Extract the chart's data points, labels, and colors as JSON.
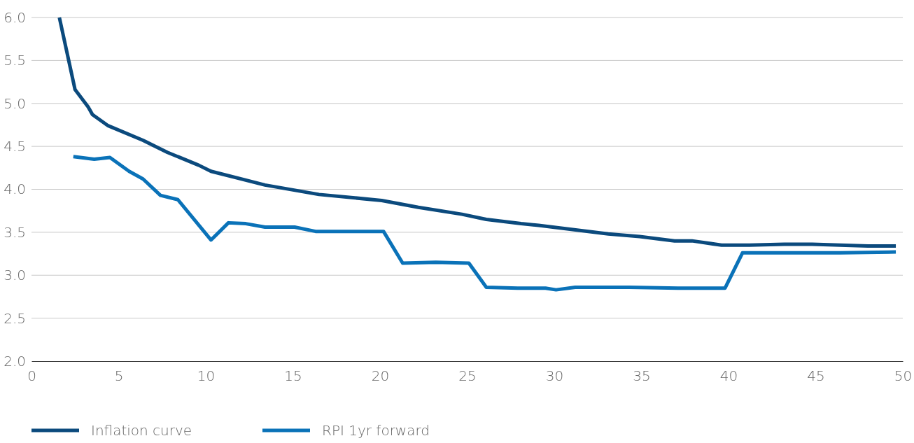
{
  "chart_data": {
    "type": "line",
    "xlim": [
      0,
      50
    ],
    "xticks": [
      0,
      5,
      10,
      15,
      20,
      25,
      30,
      35,
      40,
      45,
      50
    ],
    "ylim": [
      2,
      6
    ],
    "yticks": [
      {
        "value": 2,
        "label": "2.0"
      },
      {
        "value": 2.5,
        "label": "2.5"
      },
      {
        "value": 3,
        "label": "3.0"
      },
      {
        "value": 3.5,
        "label": "3.5"
      },
      {
        "value": 4,
        "label": "4.0"
      },
      {
        "value": 4.5,
        "label": "4.5"
      },
      {
        "value": 5,
        "label": "5.0"
      },
      {
        "value": 5.5,
        "label": "5.5"
      },
      {
        "value": 6,
        "label": "6.0"
      }
    ],
    "grid": "y",
    "legend": "bottom left",
    "marker": "none",
    "line_style": "solid",
    "series": [
      {
        "name": "Inflation curve",
        "color": "#0b4a7d",
        "x": [
          1.6,
          2.5,
          3.25,
          3.5,
          4.4,
          6.4,
          7.8,
          9.6,
          10.3,
          13.4,
          16.5,
          20.1,
          22.2,
          24.7,
          26.1,
          28.1,
          29.1,
          33.1,
          34.9,
          36.9,
          37.9,
          39.6,
          41.2,
          43.2,
          44.8,
          48.0,
          49.6
        ],
        "values": [
          6.0,
          5.16,
          4.96,
          4.87,
          4.74,
          4.57,
          4.43,
          4.28,
          4.21,
          4.05,
          3.94,
          3.87,
          3.79,
          3.71,
          3.65,
          3.6,
          3.58,
          3.48,
          3.45,
          3.4,
          3.4,
          3.35,
          3.35,
          3.36,
          3.36,
          3.34,
          3.34
        ]
      },
      {
        "name": "RPI 1yr forward",
        "color": "#0a72b8",
        "x": [
          2.4,
          3.6,
          4.5,
          5.6,
          6.4,
          7.4,
          8.4,
          10.3,
          11.3,
          12.3,
          13.4,
          15.1,
          16.3,
          20.2,
          21.3,
          23.2,
          25.1,
          26.1,
          27.9,
          29.5,
          30.1,
          31.2,
          34.3,
          37.1,
          39.8,
          40.8,
          46.4,
          49.6
        ],
        "values": [
          4.38,
          4.35,
          4.37,
          4.21,
          4.12,
          3.93,
          3.88,
          3.41,
          3.61,
          3.6,
          3.56,
          3.56,
          3.51,
          3.51,
          3.14,
          3.15,
          3.14,
          2.86,
          2.85,
          2.85,
          2.83,
          2.86,
          2.86,
          2.85,
          2.85,
          3.26,
          3.26,
          3.27
        ]
      }
    ]
  }
}
